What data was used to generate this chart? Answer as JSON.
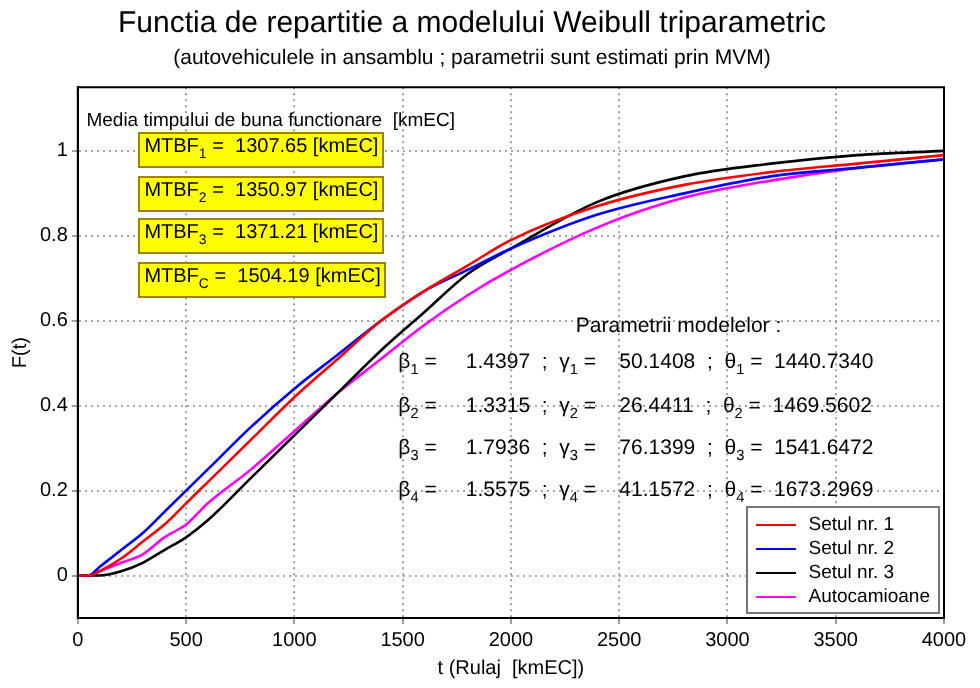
{
  "chart_data": {
    "type": "line",
    "title": "Functia de repartitie a modelului Weibull triparametric",
    "subtitle": "(autovehiculele in ansamblu ; parametrii sunt estimati prin MVM)",
    "xlabel": "t (Rulaj  [kmEC])",
    "ylabel": "F(t)",
    "x": [
      0,
      50,
      100,
      200,
      300,
      400,
      500,
      600,
      800,
      1000,
      1200,
      1400,
      1600,
      1800,
      2000,
      2400,
      2800,
      3200,
      3600,
      4000
    ],
    "series": [
      {
        "name": "Setul nr. 1",
        "color": "#ff0000",
        "values": [
          0,
          0,
          0.01,
          0.04,
          0.08,
          0.12,
          0.17,
          0.22,
          0.32,
          0.42,
          0.51,
          0.6,
          0.67,
          0.73,
          0.79,
          0.87,
          0.92,
          0.95,
          0.97,
          0.99
        ]
      },
      {
        "name": "Setul nr. 2",
        "color": "#0000ff",
        "values": [
          0,
          0,
          0.02,
          0.06,
          0.1,
          0.15,
          0.2,
          0.25,
          0.35,
          0.44,
          0.52,
          0.6,
          0.67,
          0.72,
          0.77,
          0.85,
          0.9,
          0.94,
          0.96,
          0.98
        ]
      },
      {
        "name": "Setul nr. 3",
        "color": "#000000",
        "values": [
          0,
          0,
          0,
          0.01,
          0.03,
          0.06,
          0.09,
          0.13,
          0.23,
          0.33,
          0.43,
          0.53,
          0.62,
          0.71,
          0.77,
          0.88,
          0.94,
          0.97,
          0.99,
          1.0
        ]
      },
      {
        "name": "Autocamioane",
        "color": "#ff00ff",
        "values": [
          0,
          0,
          0.01,
          0.03,
          0.05,
          0.09,
          0.12,
          0.17,
          0.25,
          0.34,
          0.43,
          0.51,
          0.59,
          0.66,
          0.72,
          0.82,
          0.89,
          0.93,
          0.96,
          0.98
        ]
      }
    ],
    "xlim": [
      0,
      4000
    ],
    "xticks": [
      0,
      500,
      1000,
      1500,
      2000,
      2500,
      3000,
      3500,
      4000
    ],
    "ylim": [
      -0.1,
      1.15
    ],
    "yticks": [
      0,
      0.2,
      0.4,
      0.6,
      0.8,
      1
    ],
    "grid": true,
    "line_style": "solid",
    "marker": "none",
    "legend": "bottom right",
    "annotations": [
      "Media timpului de buna functionare  [kmEC]",
      "MTBF$_{1}$ =  1307.65 [kmEC]",
      "MTBF$_{2}$ =  1350.97 [kmEC]",
      "MTBF$_{3}$ =  1371.21 [kmEC]",
      "MTBF$_{C}$ =  1504.19 [kmEC]",
      "Parametrii modelelor :",
      "β$_{1}$ =     1.4397  ;  γ$_{1}$ =    50.1408  ;  θ$_{1}$ =  1440.7340",
      "β$_{2}$ =     1.3315  ;  γ$_{2}$ =    26.4411  ;  θ$_{2}$ =  1469.5602",
      "β$_{3}$ =     1.7936  ;  γ$_{3}$ =    76.1399  ;  θ$_{3}$ =  1541.6472",
      "β$_{4}$ =     1.5575  ;  γ$_{4}$ =    41.1572  ;  θ$_{4}$ =  1673.2969"
    ]
  }
}
